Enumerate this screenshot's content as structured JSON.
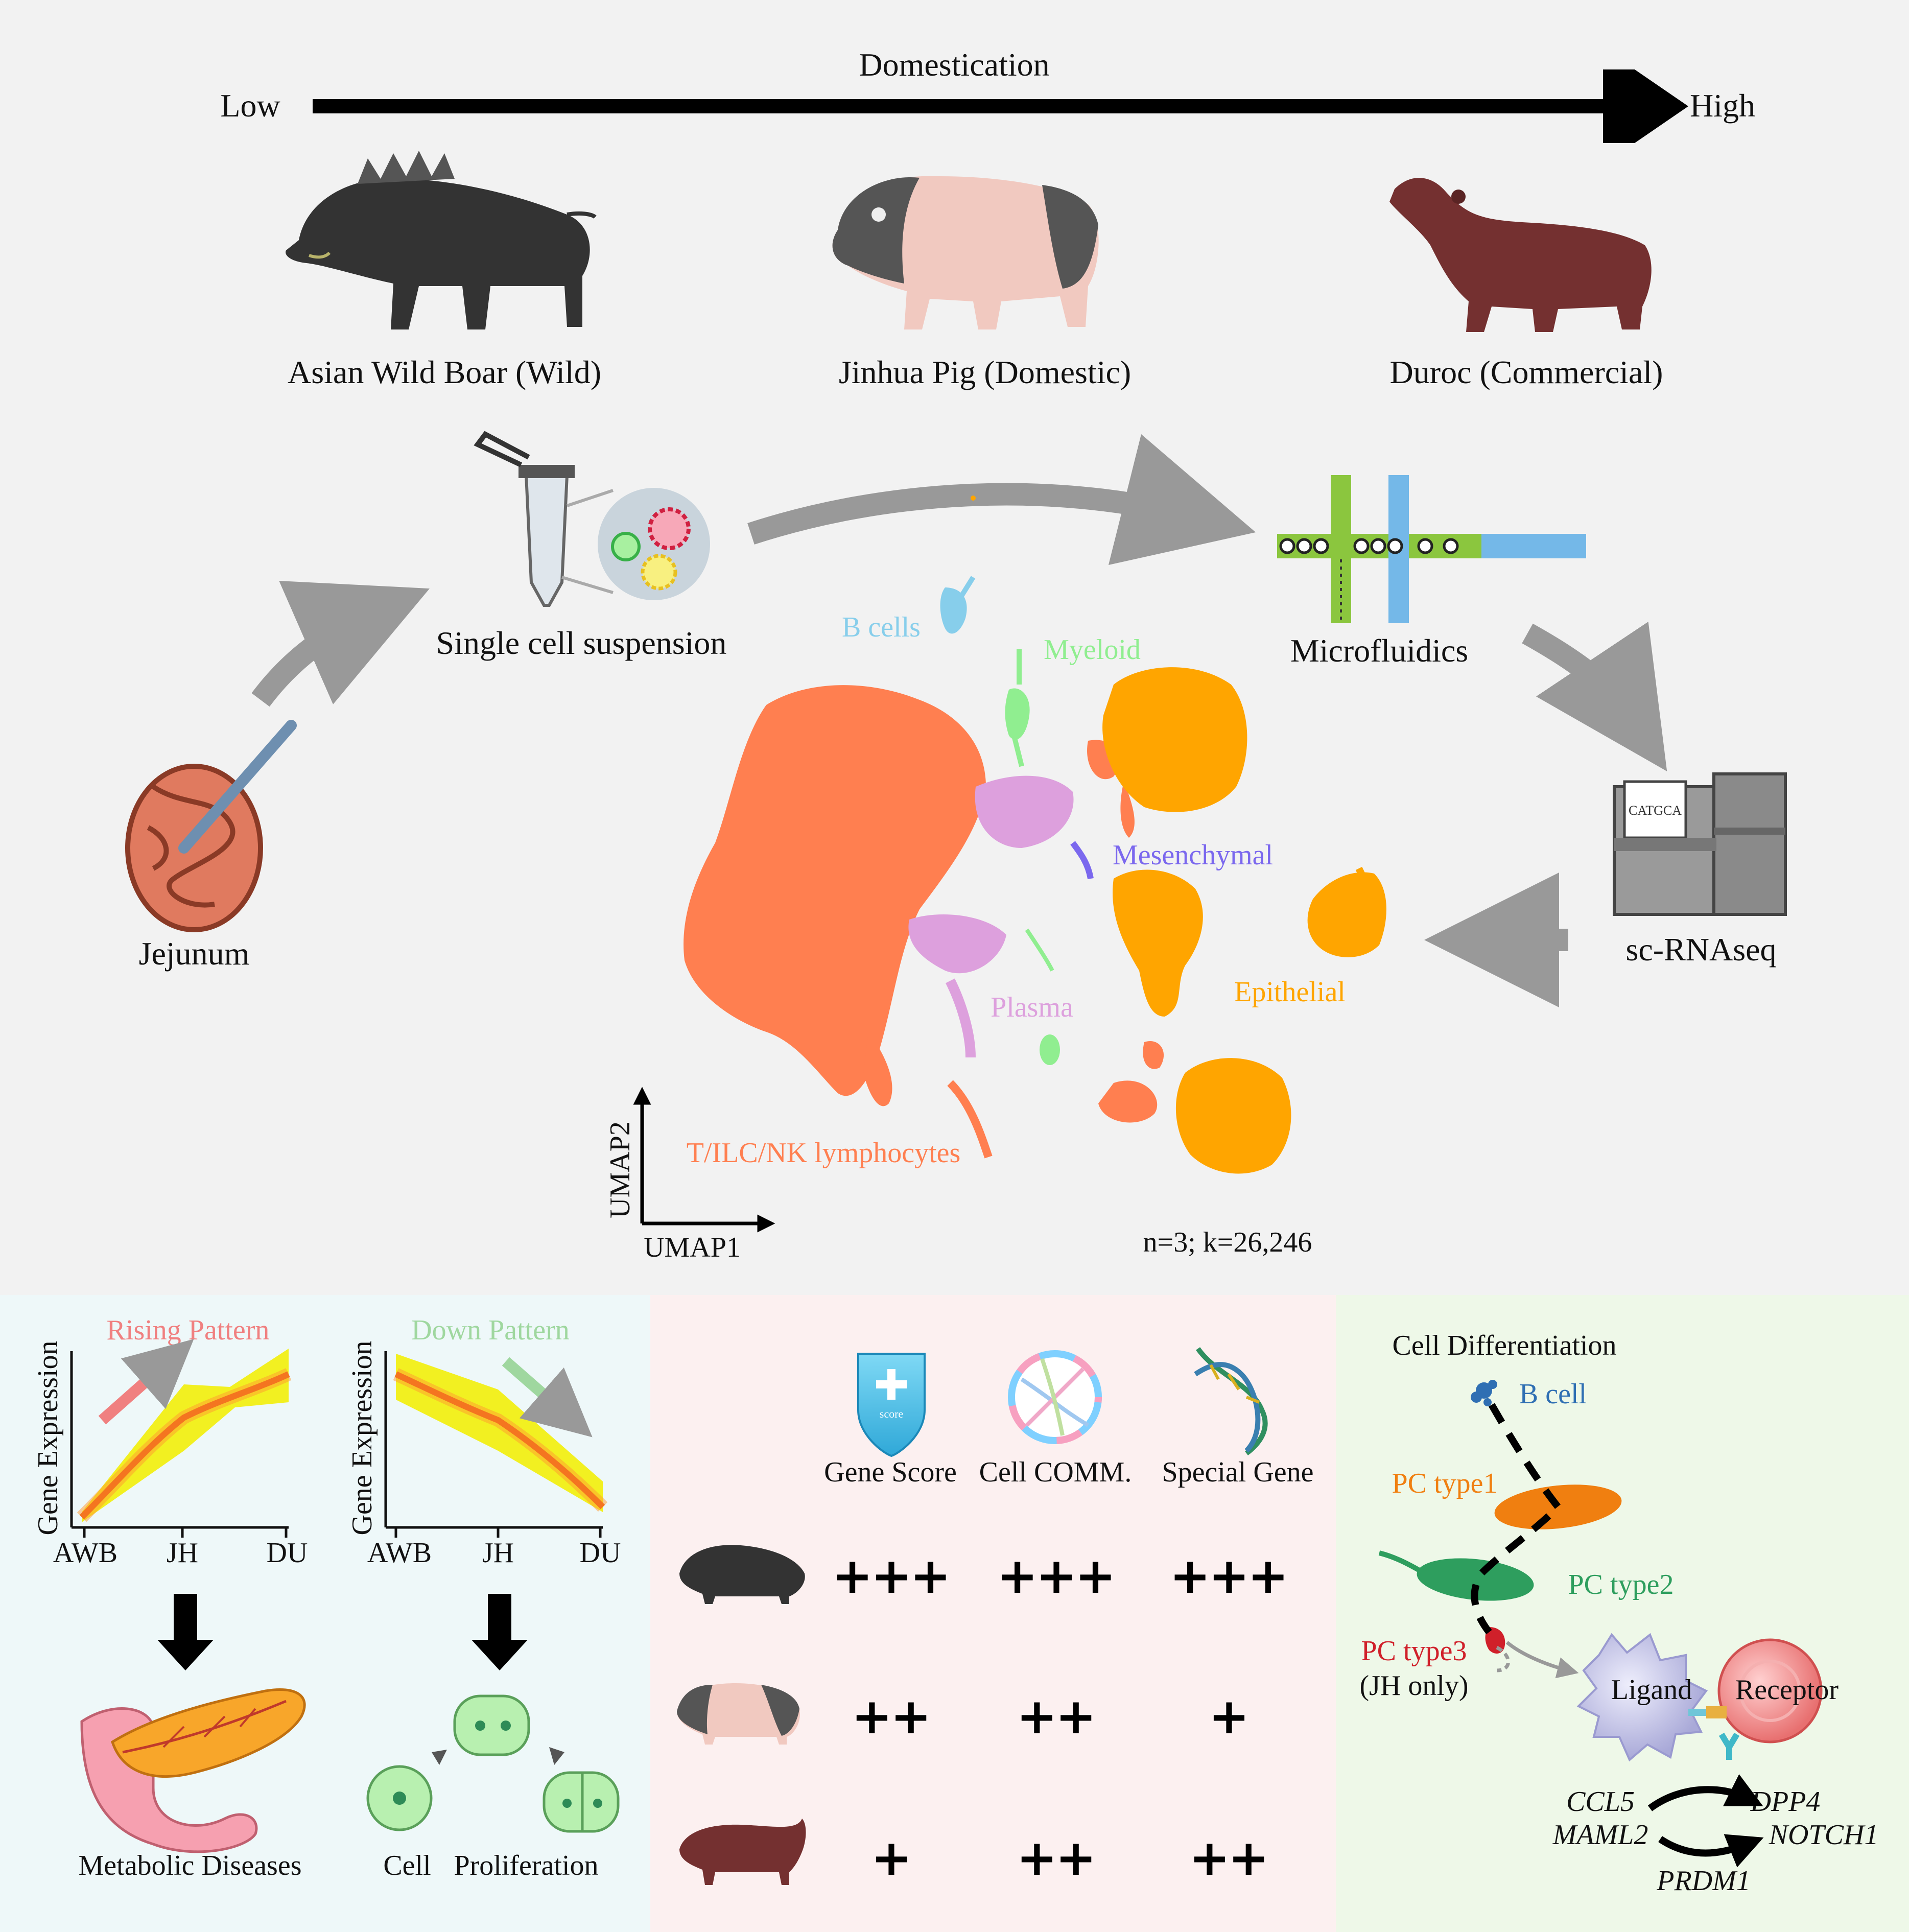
{
  "domestication": {
    "title": "Domestication",
    "low": "Low",
    "high": "High"
  },
  "breeds": {
    "awb": "Asian Wild Boar (Wild)",
    "jh": "Jinhua Pig (Domestic)",
    "du": "Duroc (Commercial)"
  },
  "workflow": {
    "jejunum": "Jejunum",
    "suspension": "Single cell suspension",
    "microfluidics": "Microfluidics",
    "sequencer_screen": "CATGCA",
    "scrnaseq": "sc-RNAseq"
  },
  "umap": {
    "axis_y": "UMAP2",
    "axis_x": "UMAP1",
    "stats": "n=3; k=26,246",
    "clusters": {
      "b_cells": "B cells",
      "myeloid": "Myeloid",
      "mesenchymal": "Mesenchymal",
      "plasma": "Plasma",
      "epithelial": "Epithelial",
      "lymphocytes": "T/ILC/NK lymphocytes"
    },
    "colors": {
      "lymphocytes": "#ff7f50",
      "epithelial": "#ffa500",
      "plasma": "#dda0dd",
      "myeloid": "#90ee90",
      "b_cells": "#87ceeb",
      "mesenchymal": "#7b68ee"
    }
  },
  "patterns": {
    "rising": {
      "title": "Rising Pattern",
      "ylabel": "Gene Expression",
      "x_ticks": [
        "AWB",
        "JH",
        "DU"
      ],
      "outcome": "Metabolic Diseases"
    },
    "down": {
      "title": "Down Pattern",
      "ylabel": "Gene Expression",
      "x_ticks": [
        "AWB",
        "JH",
        "DU"
      ],
      "outcome_a": "Cell",
      "outcome_b": "Proliferation"
    },
    "colors": {
      "rising": "#f08080",
      "down": "#9fd79f"
    }
  },
  "comparison": {
    "columns": [
      "Gene Score",
      "Cell COMM.",
      "Special Gene"
    ],
    "shield_text": "score",
    "rows": [
      {
        "breed_icon": "wild-boar-icon",
        "values": [
          "+++",
          "+++",
          "+++"
        ]
      },
      {
        "breed_icon": "jinhua-pig-icon",
        "values": [
          "++",
          "++",
          "+"
        ]
      },
      {
        "breed_icon": "duroc-pig-icon",
        "values": [
          "+",
          "++",
          "++"
        ]
      }
    ]
  },
  "differentiation": {
    "title": "Cell Differentiation",
    "b_cell": "B cell",
    "pc1": "PC type1",
    "pc2": "PC type2",
    "pc3": "PC type3",
    "pc3_note": "(JH only)",
    "ligand": "Ligand",
    "receptor": "Receptor",
    "genes": {
      "ccl5": "CCL5",
      "maml2": "MAML2",
      "prdm1": "PRDM1",
      "dpp4": "DPP4",
      "notch1": "NOTCH1"
    },
    "colors": {
      "b_cell": "#2f6fb3",
      "pc1": "#f07f10",
      "pc2": "#2e9e5e",
      "pc3": "#d0202a"
    }
  }
}
